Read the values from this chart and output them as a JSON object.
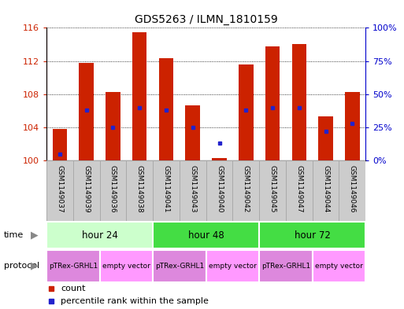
{
  "title": "GDS5263 / ILMN_1810159",
  "samples": [
    "GSM1149037",
    "GSM1149039",
    "GSM1149036",
    "GSM1149038",
    "GSM1149041",
    "GSM1149043",
    "GSM1149040",
    "GSM1149042",
    "GSM1149045",
    "GSM1149047",
    "GSM1149044",
    "GSM1149046"
  ],
  "counts": [
    103.8,
    111.8,
    108.3,
    115.5,
    112.3,
    106.7,
    100.3,
    111.6,
    113.8,
    114.0,
    105.3,
    108.3
  ],
  "percentiles": [
    5,
    38,
    25,
    40,
    38,
    25,
    13,
    38,
    40,
    40,
    22,
    28
  ],
  "ylim_left": [
    100,
    116
  ],
  "ylim_right": [
    0,
    100
  ],
  "yticks_left": [
    100,
    104,
    108,
    112,
    116
  ],
  "yticks_right": [
    0,
    25,
    50,
    75,
    100
  ],
  "ytick_labels_right": [
    "0%",
    "25%",
    "50%",
    "75%",
    "100%"
  ],
  "bar_color": "#cc2200",
  "dot_color": "#2222cc",
  "bar_bottom": 100,
  "time_groups": [
    {
      "label": "hour 24",
      "start": 0,
      "end": 4,
      "color": "#ccffcc"
    },
    {
      "label": "hour 48",
      "start": 4,
      "end": 8,
      "color": "#44dd44"
    },
    {
      "label": "hour 72",
      "start": 8,
      "end": 12,
      "color": "#44dd44"
    }
  ],
  "protocol_groups": [
    {
      "label": "pTRex-GRHL1",
      "start": 0,
      "end": 2,
      "color": "#dd88dd"
    },
    {
      "label": "empty vector",
      "start": 2,
      "end": 4,
      "color": "#ff99ff"
    },
    {
      "label": "pTRex-GRHL1",
      "start": 4,
      "end": 6,
      "color": "#dd88dd"
    },
    {
      "label": "empty vector",
      "start": 6,
      "end": 8,
      "color": "#ff99ff"
    },
    {
      "label": "pTRex-GRHL1",
      "start": 8,
      "end": 10,
      "color": "#dd88dd"
    },
    {
      "label": "empty vector",
      "start": 10,
      "end": 12,
      "color": "#ff99ff"
    }
  ],
  "tick_color_left": "#cc2200",
  "tick_color_right": "#0000cc",
  "sample_box_color": "#cccccc",
  "sample_box_edge": "#aaaaaa"
}
